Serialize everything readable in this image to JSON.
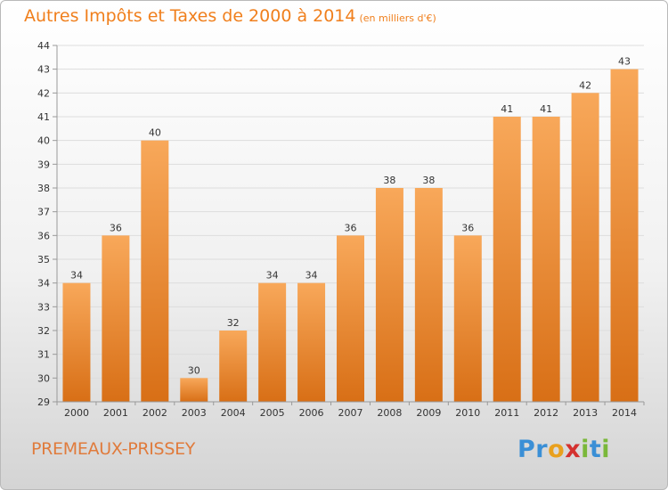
{
  "header": {
    "title": "Autres Impôts et Taxes de 2000 à 2014",
    "subtitle": "(en milliers d'€)"
  },
  "footer": {
    "place": "PREMEAUX-PRISSEY",
    "logo": [
      {
        "ch": "P",
        "color": "#3a8fd6"
      },
      {
        "ch": "r",
        "color": "#3a8fd6"
      },
      {
        "ch": "o",
        "color": "#e9a01d"
      },
      {
        "ch": "x",
        "color": "#d4312f"
      },
      {
        "ch": "i",
        "color": "#7ab83a"
      },
      {
        "ch": "t",
        "color": "#3a8fd6"
      },
      {
        "ch": "i",
        "color": "#7ab83a"
      }
    ]
  },
  "colors": {
    "bar_top": "#f8a85a",
    "bar_bottom": "#d86f16",
    "grid": "#dddddd",
    "axis": "#999999"
  },
  "chart_data": {
    "type": "bar",
    "title": "Autres Impôts et Taxes de 2000 à 2014",
    "subtitle": "(en milliers d'€)",
    "categories": [
      "2000",
      "2001",
      "2002",
      "2003",
      "2004",
      "2005",
      "2006",
      "2007",
      "2008",
      "2009",
      "2010",
      "2011",
      "2012",
      "2013",
      "2014"
    ],
    "values": [
      34,
      36,
      40,
      30,
      32,
      34,
      34,
      36,
      38,
      38,
      36,
      41,
      41,
      42,
      43
    ],
    "ylim": [
      29,
      44
    ],
    "yticks": [
      29,
      30,
      31,
      32,
      33,
      34,
      35,
      36,
      37,
      38,
      39,
      40,
      41,
      42,
      43,
      44
    ],
    "grid": "horizontal",
    "data_labels": true,
    "xlabel": "",
    "ylabel": ""
  }
}
